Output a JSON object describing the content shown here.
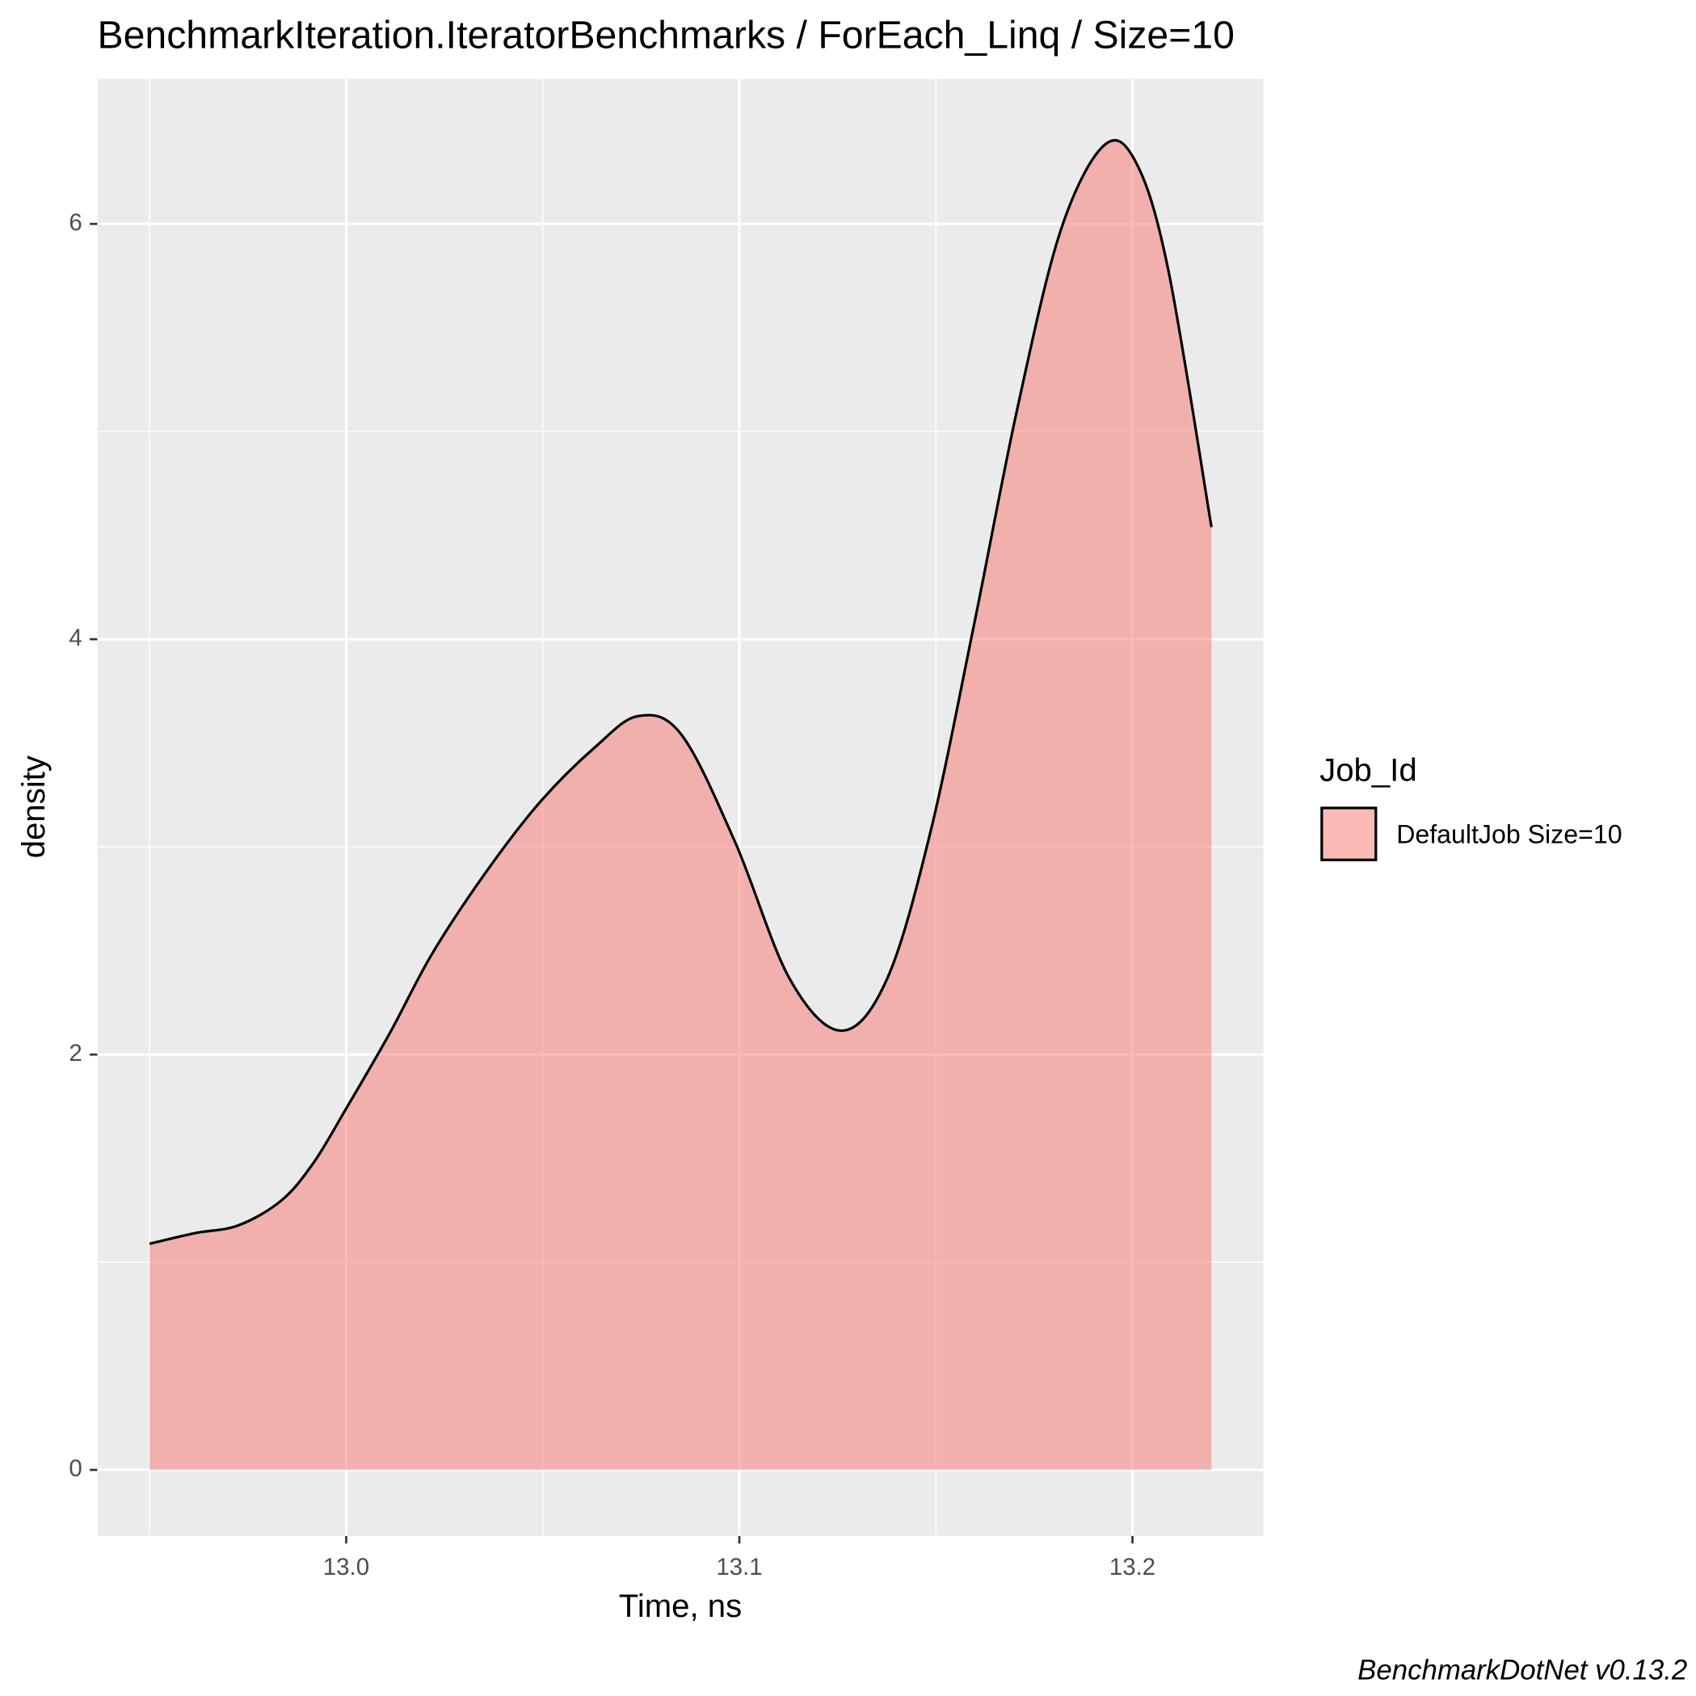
{
  "chart_data": {
    "type": "density",
    "title": "BenchmarkIteration.IteratorBenchmarks / ForEach_Linq / Size=10",
    "x_label": "Time, ns",
    "y_label": "density",
    "caption": "BenchmarkDotNet v0.13.2",
    "legend_title": "Job_Id",
    "legend_position": "right",
    "grid": true,
    "x": [
      12.95,
      12.9615,
      12.9725,
      12.9835,
      12.9917,
      13.0,
      13.011,
      13.022,
      13.0358,
      13.0495,
      13.0633,
      13.0743,
      13.0853,
      13.099,
      13.1128,
      13.126,
      13.1376,
      13.1486,
      13.1596,
      13.1706,
      13.1816,
      13.1926,
      13.2008,
      13.2091,
      13.2201
    ],
    "series": [
      {
        "name": "DefaultJob Size=10",
        "color": "#F8766D",
        "values": [
          1.089,
          1.14,
          1.177,
          1.297,
          1.479,
          1.74,
          2.1,
          2.49,
          2.885,
          3.22,
          3.48,
          3.63,
          3.54,
          3.02,
          2.365,
          2.115,
          2.365,
          3.07,
          4.06,
          5.1,
          5.96,
          6.375,
          6.3,
          5.78,
          4.54
        ]
      }
    ],
    "xlim": [
      12.9367,
      13.2333
    ],
    "ylim": [
      -0.318,
      6.698
    ],
    "xticks": [
      {
        "value": 13,
        "label": "13.0"
      },
      13.1,
      13.2
    ],
    "yticks": [
      0,
      2,
      4,
      6
    ],
    "minor_xticks": [
      12.95,
      13.05,
      13.15
    ],
    "minor_yticks": [
      1,
      3,
      5
    ]
  }
}
